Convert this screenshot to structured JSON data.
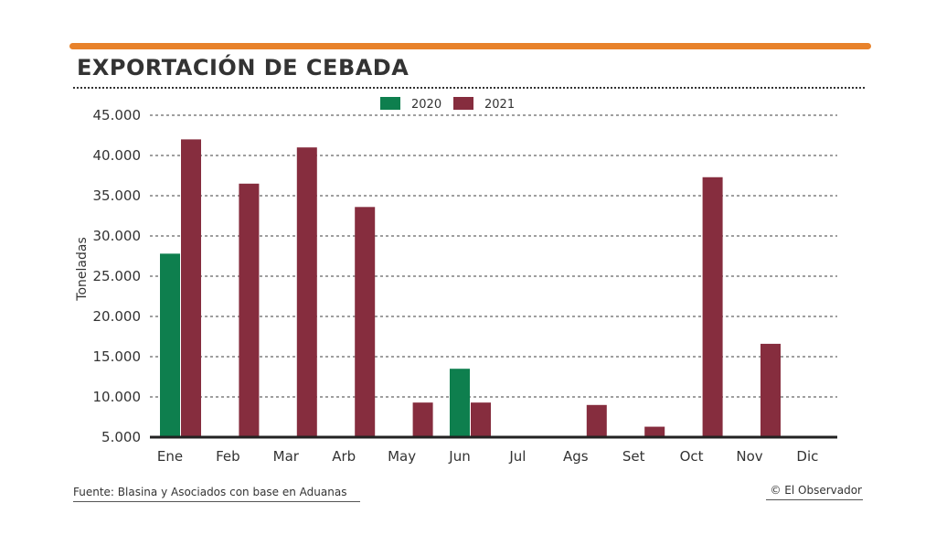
{
  "header": {
    "title": "EXPORTACIÓN DE CEBADA"
  },
  "colors": {
    "accent_bar": "#E8822B",
    "series_2020": "#0E7F4E",
    "series_2021": "#862D3E",
    "grid": "#666666",
    "text": "#333333"
  },
  "chart_data": {
    "type": "bar",
    "title": "",
    "xlabel": "",
    "ylabel": "Toneladas",
    "categories": [
      "Ene",
      "Feb",
      "Mar",
      "Arb",
      "May",
      "Jun",
      "Jul",
      "Ags",
      "Set",
      "Oct",
      "Nov",
      "Dic"
    ],
    "series": [
      {
        "name": "2020",
        "values": [
          27800,
          null,
          null,
          null,
          null,
          13500,
          null,
          null,
          null,
          null,
          null,
          null
        ]
      },
      {
        "name": "2021",
        "values": [
          42000,
          36500,
          41000,
          33600,
          9300,
          9300,
          null,
          9000,
          6300,
          37300,
          16600,
          null
        ]
      }
    ],
    "y_ticks": [
      "5.000",
      "10.000",
      "15.000",
      "20.000",
      "25.000",
      "30.000",
      "35.000",
      "40.000",
      "45.000"
    ],
    "y_tick_values": [
      5000,
      10000,
      15000,
      20000,
      25000,
      30000,
      35000,
      40000,
      45000
    ],
    "ylim": [
      5000,
      45000
    ],
    "grid": true,
    "legend_position": "top-center"
  },
  "footer": {
    "source": "Fuente: Blasina y Asociados con base en Aduanas",
    "credit": "© El Observador"
  }
}
